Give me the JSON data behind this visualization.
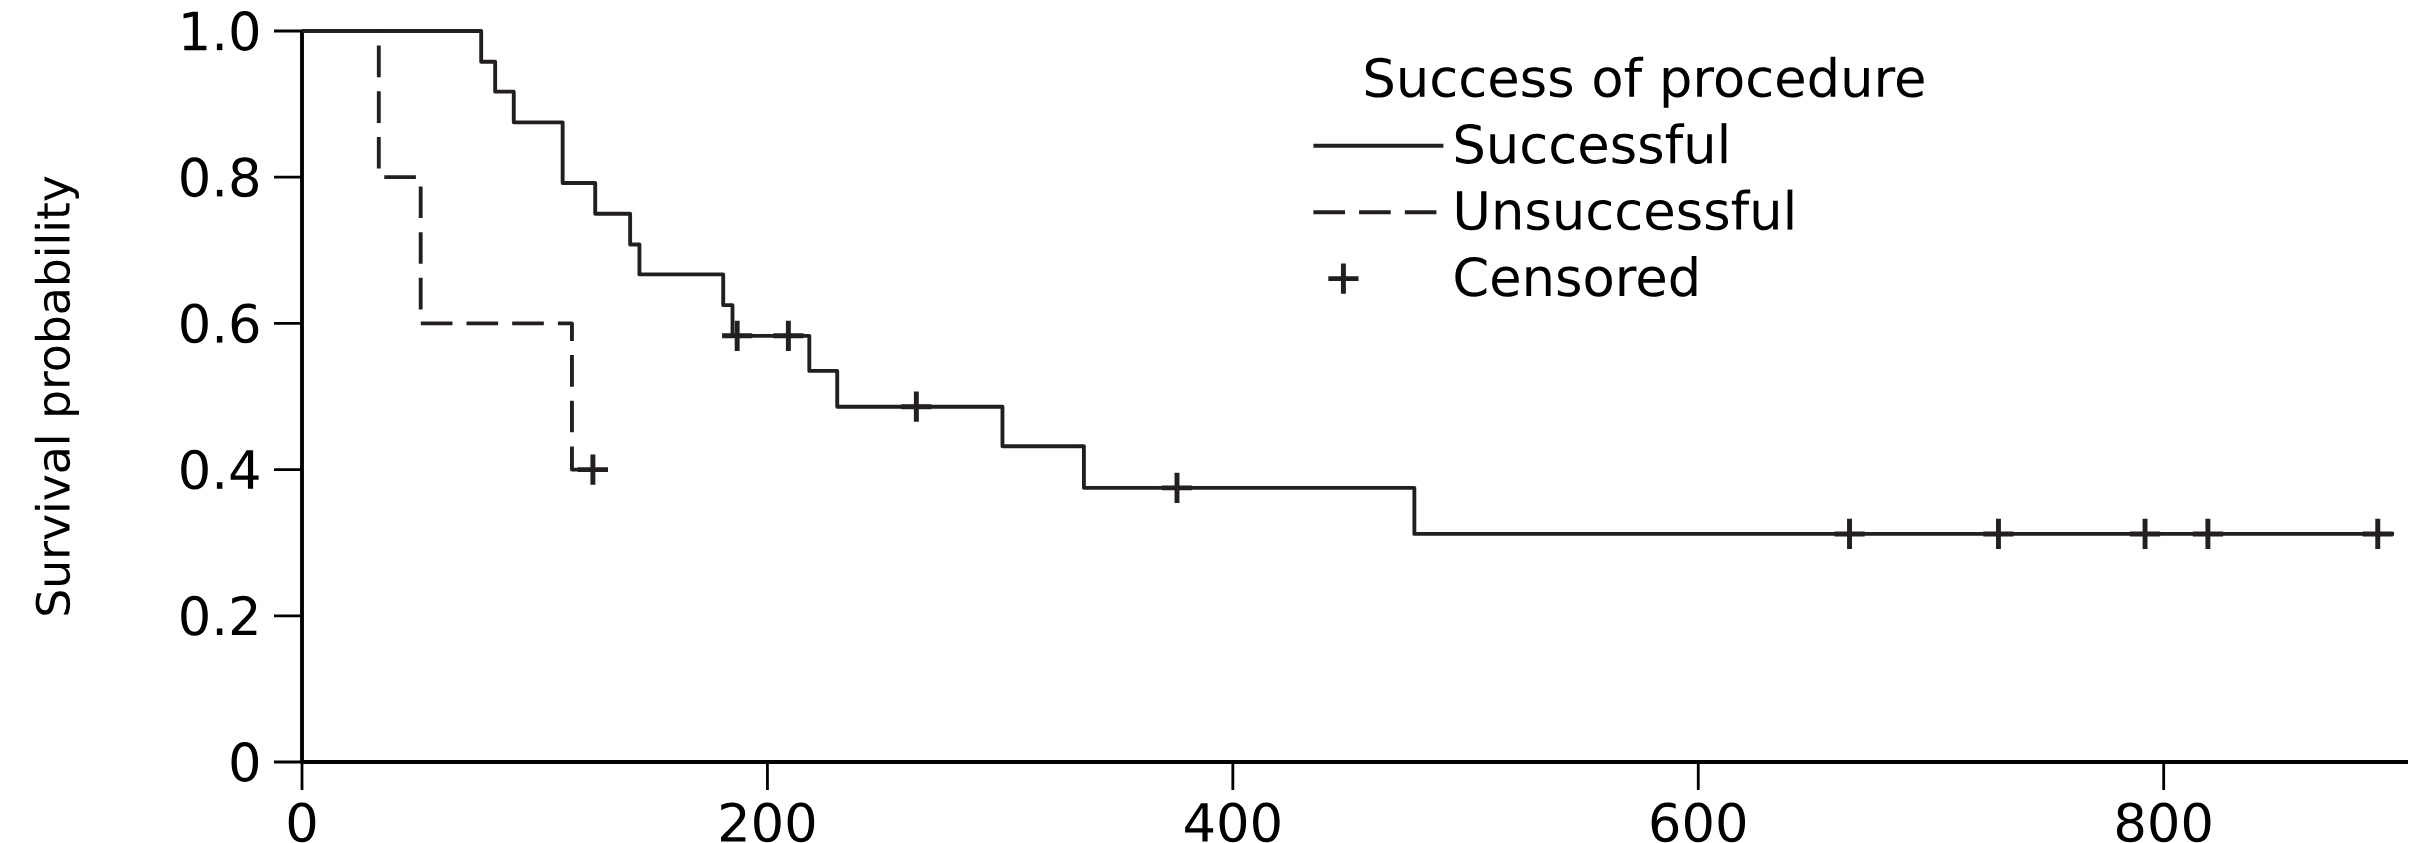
{
  "chart_data": {
    "type": "step",
    "ylabel": "Survival probability",
    "legend_title": "Success of procedure",
    "legend": "top right",
    "grid": false,
    "xlim": [
      0,
      905
    ],
    "xticks": [
      0,
      200,
      400,
      600,
      800
    ],
    "ylim": [
      0,
      1
    ],
    "yticks": [
      0,
      {
        "value": 0.2,
        "label": "0.2"
      },
      {
        "value": 0.4,
        "label": "0.4"
      },
      {
        "value": 0.6,
        "label": "0.6"
      },
      {
        "value": 0.8,
        "label": "0.8"
      },
      {
        "value": 1,
        "label": "1.0"
      }
    ],
    "series": [
      {
        "name": "Successful",
        "color": "#231f20",
        "line_style": "solid",
        "x": [
          0,
          77,
          83,
          91,
          112,
          126,
          141,
          145,
          181,
          185,
          218,
          230,
          301,
          336,
          478,
          899
        ],
        "values": [
          1,
          0.958,
          0.917,
          0.875,
          0.792,
          0.75,
          0.708,
          0.667,
          0.625,
          0.583,
          0.535,
          0.486,
          0.432,
          0.375,
          0.312,
          0.312
        ]
      },
      {
        "name": "Unsuccessful",
        "color": "#231f20",
        "line_style": "dashed",
        "x": [
          0,
          33,
          51,
          116,
          125
        ],
        "values": [
          1,
          0.8,
          0.6,
          0.4,
          0.4
        ]
      },
      {
        "name": "Censored",
        "type": "scatter",
        "color": "#231f20",
        "marker": "cross",
        "x": [
          125,
          187,
          209,
          264,
          376,
          665,
          729,
          792,
          819,
          892
        ],
        "values": [
          0.4,
          0.583,
          0.583,
          0.486,
          0.375,
          0.312,
          0.312,
          0.312,
          0.312,
          0.312
        ]
      }
    ]
  }
}
